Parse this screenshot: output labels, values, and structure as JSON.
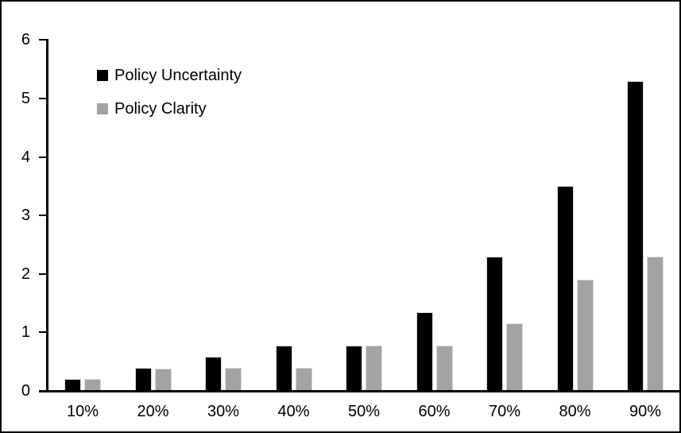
{
  "chart_data": {
    "type": "bar",
    "title": "",
    "xlabel": "",
    "ylabel": "",
    "categories": [
      "10%",
      "20%",
      "30%",
      "40%",
      "50%",
      "60%",
      "70%",
      "80%",
      "90%"
    ],
    "series": [
      {
        "name": "Policy Uncertainty",
        "color": "#000000",
        "values": [
          0.2,
          0.4,
          0.58,
          0.77,
          0.78,
          1.34,
          2.3,
          3.5,
          5.3
        ]
      },
      {
        "name": "Policy Clarity",
        "color": "#a3a3a3",
        "values": [
          0.2,
          0.38,
          0.39,
          0.39,
          0.77,
          0.77,
          1.15,
          1.9,
          2.3
        ]
      }
    ],
    "ylim": [
      0,
      6
    ],
    "yticks": [
      0,
      1,
      2,
      3,
      4,
      5,
      6
    ],
    "grid": false,
    "legend_position": "top-left"
  },
  "colors": {
    "bar_outline": "#d9d9d9",
    "axis": "#000000",
    "frame_border": "#000000",
    "background": "#ffffff"
  }
}
